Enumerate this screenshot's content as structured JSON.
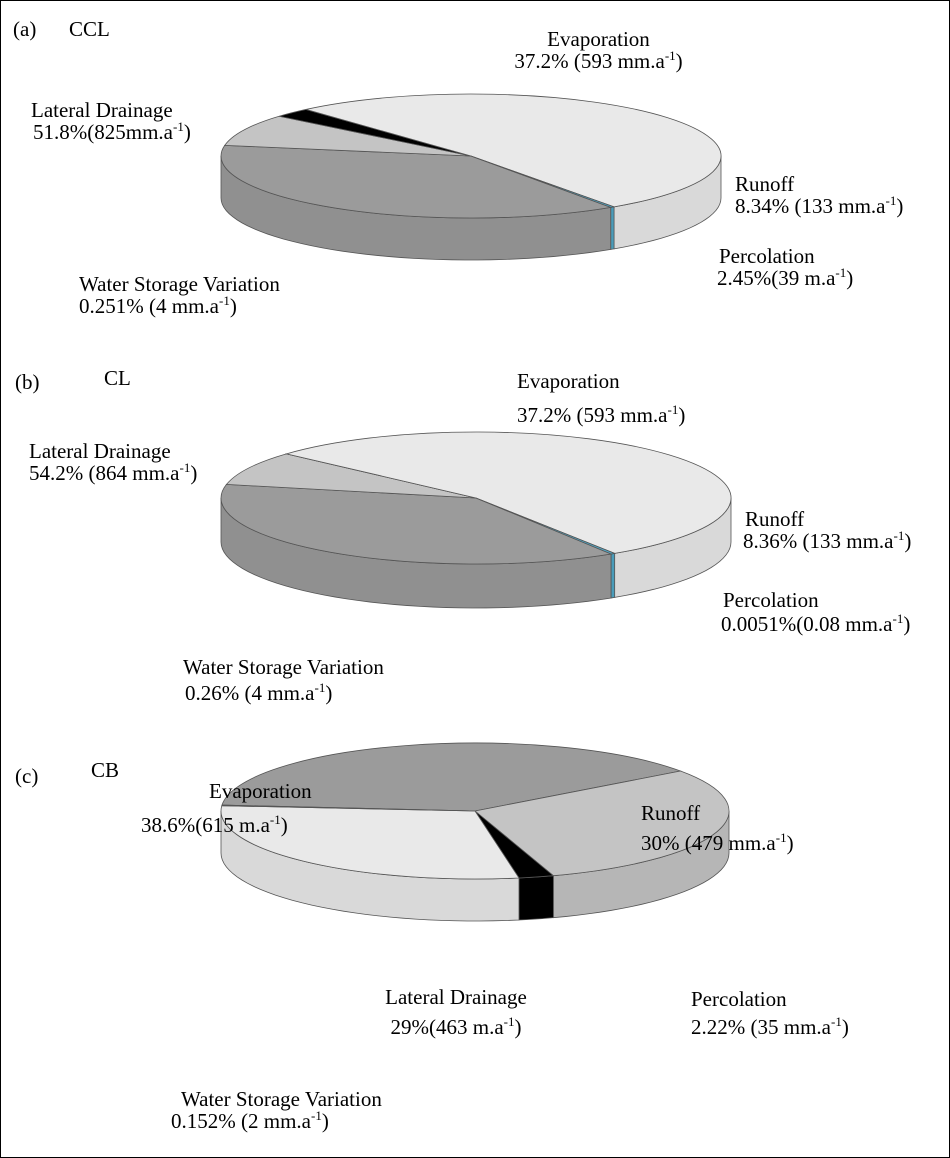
{
  "chart_data": [
    {
      "type": "pie",
      "panel": "(a)",
      "title": "CCL",
      "slices": [
        {
          "name": "Evaporation",
          "percent": 37.2,
          "value_text": "37.2% (593 mm.a",
          "color": "#9b9b9b"
        },
        {
          "name": "Runoff",
          "percent": 8.34,
          "value_text": "8.34% (133 mm.a",
          "color": "#c4c4c4"
        },
        {
          "name": "Percolation",
          "percent": 2.45,
          "value_text": "2.45%(39 m.a",
          "color": "#000000"
        },
        {
          "name": "Lateral Drainage",
          "percent": 51.8,
          "value_text": "51.8%(825mm.a",
          "color": "#e9e9e9"
        },
        {
          "name": "Water Storage Variation",
          "percent": 0.251,
          "value_text": "0.251% (4 mm.a",
          "color": "#4fa8c8"
        }
      ],
      "unit_exponent": "-1",
      "unit_close": ")"
    },
    {
      "type": "pie",
      "panel": "(b)",
      "title": "CL",
      "slices": [
        {
          "name": "Evaporation",
          "percent": 37.2,
          "value_text": "37.2% (593 mm.a",
          "color": "#9b9b9b"
        },
        {
          "name": "Runoff",
          "percent": 8.36,
          "value_text": "8.36% (133 mm.a",
          "color": "#c4c4c4"
        },
        {
          "name": "Percolation",
          "percent": 0.0051,
          "value_text": "0.0051%(0.08 mm.a",
          "color": "#000000"
        },
        {
          "name": "Lateral Drainage",
          "percent": 54.2,
          "value_text": "54.2% (864 mm.a",
          "color": "#e9e9e9"
        },
        {
          "name": "Water Storage Variation",
          "percent": 0.26,
          "value_text": "0.26% (4 mm.a",
          "color": "#4fa8c8"
        }
      ],
      "unit_exponent": "-1",
      "unit_close": ")"
    },
    {
      "type": "pie",
      "panel": "(c)",
      "title": "CB",
      "slices": [
        {
          "name": "Evaporation",
          "percent": 38.6,
          "value_text": "38.6%(615 m.a",
          "color": "#9b9b9b"
        },
        {
          "name": "Runoff",
          "percent": 30,
          "value_text": "30% (479 mm.a",
          "color": "#c4c4c4"
        },
        {
          "name": "Percolation",
          "percent": 2.22,
          "value_text": "2.22% (35 mm.a",
          "color": "#000000"
        },
        {
          "name": "Lateral Drainage",
          "percent": 29,
          "value_text": "29%(463 m.a",
          "color": "#e9e9e9"
        },
        {
          "name": "Water Storage Variation",
          "percent": 0.152,
          "value_text": "0.152% (2 mm.a",
          "color": "#4fa8c8"
        }
      ],
      "unit_exponent": "-1",
      "unit_close": ")"
    }
  ]
}
